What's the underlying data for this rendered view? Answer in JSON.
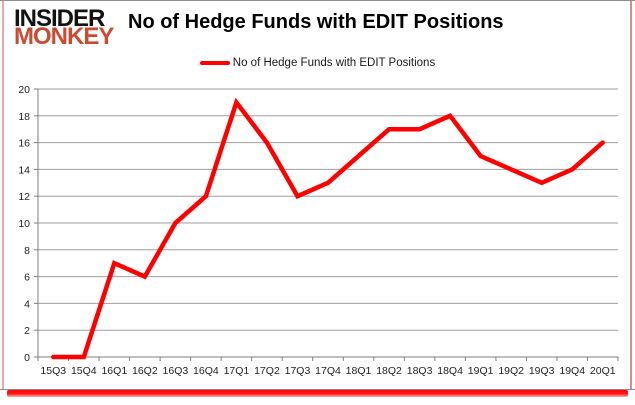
{
  "header": {
    "logo_line1": "INSIDER",
    "logo_line2": "MONKEY",
    "title": "No of Hedge Funds with EDIT Positions"
  },
  "legend": {
    "label": "No of Hedge Funds with EDIT Positions"
  },
  "colors": {
    "line": "#fe0000",
    "logo_accent": "#cb4b32",
    "grid": "#9e9e9e",
    "axis": "#7f7f7f",
    "axis_text": "#1f1f1f",
    "shadow": "#ff0000"
  },
  "chart_data": {
    "type": "line",
    "title": "No of Hedge Funds with EDIT Positions",
    "categories": [
      "15Q3",
      "15Q4",
      "16Q1",
      "16Q2",
      "16Q3",
      "16Q4",
      "17Q1",
      "17Q2",
      "17Q3",
      "17Q4",
      "18Q1",
      "18Q2",
      "18Q3",
      "18Q4",
      "19Q1",
      "19Q2",
      "19Q3",
      "19Q4",
      "20Q1"
    ],
    "series": [
      {
        "name": "No of Hedge Funds with EDIT Positions",
        "color": "#fe0000",
        "values": [
          0,
          0,
          7,
          6,
          10,
          12,
          19,
          16,
          12,
          13,
          15,
          17,
          17,
          18,
          15,
          14,
          13,
          14,
          16
        ]
      }
    ],
    "xlabel": "",
    "ylabel": "",
    "ylim": [
      0,
      20
    ],
    "yticks": [
      0,
      2,
      4,
      6,
      8,
      10,
      12,
      14,
      16,
      18,
      20
    ],
    "grid": true,
    "legend_position": "top-center"
  }
}
